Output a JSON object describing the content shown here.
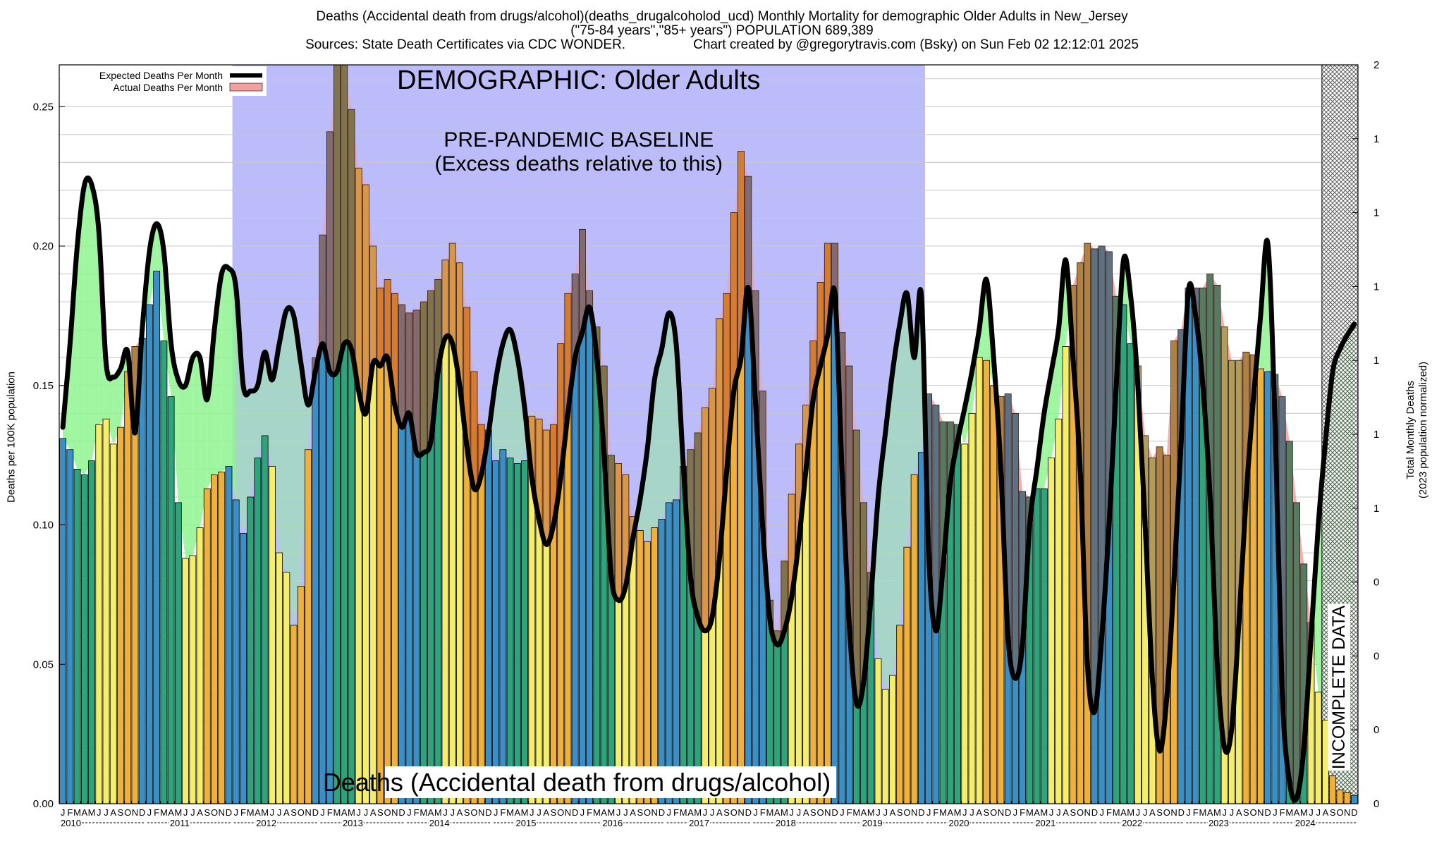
{
  "title_line1": "Deaths (Accidental death from drugs/alcohol)(deaths_drugalcoholod_ucd) Monthly Mortality for demographic Older Adults in New_Jersey",
  "title_line2": "(\"75-84 years\",\"85+ years\") POPULATION 689,389",
  "title_line3_left": "Sources: State Death Certificates via CDC WONDER.",
  "title_line3_right": "Chart created by @gregorytravis.com (Bsky) on Sun Feb 02 12:12:01 2025",
  "colors": {
    "background": "#ffffff",
    "baseline_region": "#bcbcfb",
    "expected_line": "#000000",
    "excess_fill": "#f2a0a0",
    "deficit_fill": "#8ff58f",
    "bar_winter": "#3a8fc4",
    "bar_spring": "#2fa37a",
    "bar_summer": "#f4ee6a",
    "bar_fall": "#f0b13a",
    "incomplete_hatch": "#555555"
  },
  "chart_data": {
    "type": "bar",
    "title": "Deaths (Accidental death from drugs/alcohol)(deaths_drugalcoholod_ucd) Monthly Mortality for demographic Older Adults in New_Jersey",
    "ylabel": "Deaths per 100K population",
    "y2label": "Total Monthly Deaths",
    "y2label_sub": "(2023 population normalized)",
    "ylim": [
      0,
      0.265
    ],
    "yticks": [
      "0.00",
      "0.05",
      "0.10",
      "0.15",
      "0.20",
      "0.25"
    ],
    "y2ticks": [
      "0",
      "0",
      "0",
      "0",
      "1",
      "1",
      "1",
      "1",
      "1",
      "1",
      "2"
    ],
    "month_letters": [
      "J",
      "F",
      "M",
      "A",
      "M",
      "J",
      "J",
      "A",
      "S",
      "O",
      "N",
      "D"
    ],
    "years": [
      "2010",
      "2011",
      "2012",
      "2013",
      "2014",
      "2015",
      "2016",
      "2017",
      "2018",
      "2019",
      "2020",
      "2021",
      "2022",
      "2023",
      "2024"
    ],
    "grid": true,
    "legend_position": "top-left",
    "legend": [
      {
        "name": "Expected Deaths Per Month",
        "style": "line"
      },
      {
        "name": "Actual Deaths Per Month",
        "style": "fill"
      }
    ],
    "annotations": {
      "demographic": "DEMOGRAPHIC: Older Adults",
      "baseline_title": "PRE-PANDEMIC BASELINE",
      "baseline_sub": "(Excess deaths relative to this)",
      "baseline_range": [
        "2012-01",
        "2019-12"
      ],
      "incomplete": "INCOMPLETE DATA",
      "incomplete_from": "2024-08",
      "bottom_label": "Deaths (Accidental death from drugs/alcohol)"
    },
    "series": [
      {
        "name": "Actual Deaths Per Month",
        "start": "2010-01",
        "values": [
          0.131,
          0.127,
          0.12,
          0.118,
          0.123,
          0.136,
          0.138,
          0.129,
          0.135,
          0.155,
          0.164,
          0.167,
          0.179,
          0.191,
          0.166,
          0.146,
          0.108,
          0.088,
          0.089,
          0.099,
          0.113,
          0.118,
          0.119,
          0.121,
          0.109,
          0.097,
          0.11,
          0.124,
          0.132,
          0.121,
          0.09,
          0.083,
          0.064,
          0.078,
          0.127,
          0.16,
          0.204,
          0.241,
          0.265,
          0.265,
          0.249,
          0.228,
          0.222,
          0.2,
          0.185,
          0.188,
          0.183,
          0.179,
          0.176,
          0.177,
          0.18,
          0.184,
          0.188,
          0.195,
          0.201,
          0.194,
          0.178,
          0.155,
          0.136,
          0.134,
          0.123,
          0.127,
          0.124,
          0.122,
          0.123,
          0.139,
          0.138,
          0.134,
          0.136,
          0.165,
          0.183,
          0.19,
          0.206,
          0.184,
          0.171,
          0.157,
          0.125,
          0.122,
          0.118,
          0.103,
          0.098,
          0.094,
          0.099,
          0.102,
          0.108,
          0.109,
          0.121,
          0.127,
          0.133,
          0.142,
          0.149,
          0.174,
          0.183,
          0.212,
          0.234,
          0.225,
          0.184,
          0.148,
          0.073,
          0.062,
          0.087,
          0.111,
          0.129,
          0.143,
          0.166,
          0.187,
          0.201,
          0.201,
          0.169,
          0.157,
          0.134,
          0.108,
          0.083,
          0.052,
          0.041,
          0.046,
          0.064,
          0.092,
          0.118,
          0.126,
          0.147,
          0.143,
          0.137,
          0.137,
          0.136,
          0.129,
          0.14,
          0.16,
          0.159,
          0.15,
          0.146,
          0.147,
          0.14,
          0.112,
          0.11,
          0.113,
          0.113,
          0.124,
          0.138,
          0.164,
          0.186,
          0.194,
          0.201,
          0.199,
          0.2,
          0.198,
          0.182,
          0.179,
          0.165,
          0.157,
          0.132,
          0.124,
          0.128,
          0.125,
          0.166,
          0.17,
          0.185,
          0.185,
          0.185,
          0.19,
          0.186,
          0.171,
          0.159,
          0.159,
          0.162,
          0.161,
          0.156,
          0.155,
          0.154,
          0.146,
          0.13,
          0.108,
          0.086,
          0.065,
          0.04,
          0.03,
          0.01,
          0.005,
          0.004,
          0.003
        ]
      },
      {
        "name": "Expected Deaths Per Month",
        "start": "2010-01",
        "values": [
          0.135,
          0.165,
          0.2,
          0.222,
          0.222,
          0.205,
          0.158,
          0.153,
          0.156,
          0.162,
          0.133,
          0.17,
          0.198,
          0.208,
          0.198,
          0.165,
          0.152,
          0.15,
          0.16,
          0.16,
          0.145,
          0.17,
          0.19,
          0.192,
          0.185,
          0.15,
          0.148,
          0.15,
          0.162,
          0.152,
          0.165,
          0.177,
          0.175,
          0.158,
          0.143,
          0.155,
          0.165,
          0.155,
          0.155,
          0.165,
          0.163,
          0.148,
          0.14,
          0.158,
          0.157,
          0.16,
          0.143,
          0.135,
          0.14,
          0.126,
          0.126,
          0.13,
          0.155,
          0.167,
          0.165,
          0.15,
          0.128,
          0.113,
          0.118,
          0.133,
          0.152,
          0.165,
          0.17,
          0.16,
          0.142,
          0.117,
          0.102,
          0.093,
          0.1,
          0.117,
          0.14,
          0.16,
          0.169,
          0.178,
          0.16,
          0.126,
          0.082,
          0.073,
          0.078,
          0.095,
          0.109,
          0.127,
          0.152,
          0.163,
          0.176,
          0.165,
          0.121,
          0.081,
          0.067,
          0.062,
          0.067,
          0.088,
          0.119,
          0.148,
          0.16,
          0.185,
          0.144,
          0.099,
          0.066,
          0.057,
          0.062,
          0.074,
          0.094,
          0.12,
          0.145,
          0.157,
          0.168,
          0.183,
          0.119,
          0.064,
          0.036,
          0.044,
          0.074,
          0.11,
          0.133,
          0.155,
          0.172,
          0.183,
          0.16,
          0.182,
          0.09,
          0.062,
          0.085,
          0.115,
          0.13,
          0.142,
          0.155,
          0.17,
          0.188,
          0.16,
          0.12,
          0.06,
          0.045,
          0.057,
          0.1,
          0.12,
          0.14,
          0.155,
          0.17,
          0.195,
          0.16,
          0.12,
          0.05,
          0.033,
          0.06,
          0.1,
          0.15,
          0.195,
          0.182,
          0.15,
          0.1,
          0.045,
          0.019,
          0.038,
          0.08,
          0.13,
          0.184,
          0.175,
          0.15,
          0.11,
          0.05,
          0.02,
          0.027,
          0.065,
          0.11,
          0.145,
          0.175,
          0.201,
          0.137,
          0.04,
          0.008,
          0.002,
          0.02,
          0.06,
          0.1,
          0.13,
          0.155,
          0.163,
          0.168,
          0.172
        ]
      }
    ]
  }
}
